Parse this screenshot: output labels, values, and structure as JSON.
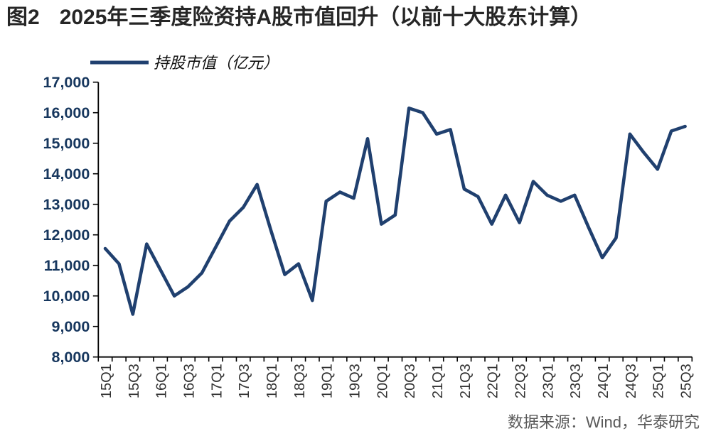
{
  "title": {
    "tag": "图2",
    "text": "2025年三季度险资持A股市值回升（以前十大股东计算）"
  },
  "legend": {
    "label": "持股市值（亿元）"
  },
  "source": "数据来源：Wind，华泰研究",
  "colors": {
    "line": "#20406F",
    "y_label": "#17375E",
    "x_label": "#333333",
    "axis": "#000000",
    "title": "#262626",
    "source": "#595959"
  },
  "chart_data": {
    "type": "line",
    "title": "2025年三季度险资持A股市值回升（以前十大股东计算）",
    "legend_entries": [
      "持股市值（亿元）"
    ],
    "legend_position": "top-left",
    "grid": false,
    "ylim": [
      8000,
      17000
    ],
    "y_tick_step": 1000,
    "x_label_every": 2,
    "x": [
      "15Q1",
      "15Q2",
      "15Q3",
      "15Q4",
      "16Q1",
      "16Q2",
      "16Q3",
      "16Q4",
      "17Q1",
      "17Q2",
      "17Q3",
      "17Q4",
      "18Q1",
      "18Q2",
      "18Q3",
      "18Q4",
      "19Q1",
      "19Q2",
      "19Q3",
      "19Q4",
      "20Q1",
      "20Q2",
      "20Q3",
      "20Q4",
      "21Q1",
      "21Q2",
      "21Q3",
      "21Q4",
      "22Q1",
      "22Q2",
      "22Q3",
      "22Q4",
      "23Q1",
      "23Q2",
      "23Q3",
      "23Q4",
      "24Q1",
      "24Q2",
      "24Q3",
      "24Q4",
      "25Q1",
      "25Q2",
      "25Q3"
    ],
    "values": [
      11550,
      11050,
      9400,
      11700,
      10850,
      10000,
      10300,
      10750,
      11600,
      12450,
      12900,
      13650,
      12150,
      10700,
      11050,
      9850,
      13100,
      13400,
      13200,
      15150,
      12350,
      12650,
      16150,
      16000,
      15300,
      15450,
      13500,
      13250,
      12350,
      13300,
      12400,
      13750,
      13300,
      13100,
      13300,
      12250,
      11250,
      11900,
      15300,
      14700,
      14150,
      15400,
      15550
    ]
  }
}
